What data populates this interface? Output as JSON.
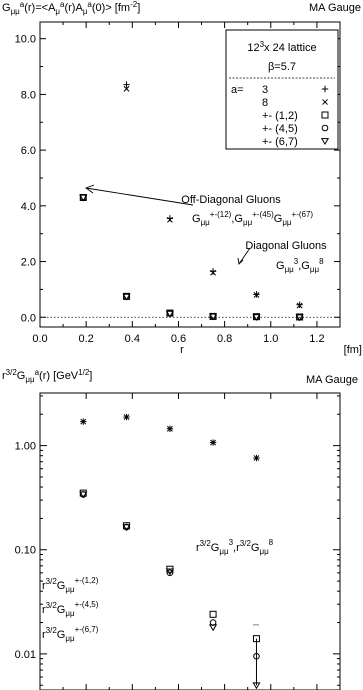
{
  "chart_data": [
    {
      "type": "scatter",
      "title_left": "G_{μμ}^{a}(r)=<A_{μ}^{a}(r)A_{μ}^{a}(0)> [fm^{-2}]",
      "title_right": "MA Gauge",
      "xlabel": "r",
      "xunit": "[fm]",
      "xlim": [
        0.0,
        1.3
      ],
      "ylim": [
        -0.35,
        10.6
      ],
      "xticks": [
        "0.0",
        "0.2",
        "0.4",
        "0.6",
        "0.8",
        "1.0",
        "1.2"
      ],
      "xtick_values": [
        0.0,
        0.2,
        0.4,
        0.6,
        0.8,
        1.0,
        1.2
      ],
      "yticks": [
        "0.0",
        "2.0",
        "4.0",
        "6.0",
        "8.0",
        "10.0"
      ],
      "ytick_values": [
        0.0,
        2.0,
        4.0,
        6.0,
        8.0,
        10.0
      ],
      "zero_line": true,
      "legend": {
        "placement": "top-right",
        "header": "12^3x 24 lattice",
        "beta": "β=5.7",
        "prefix": "a=",
        "entries": [
          {
            "label": "3",
            "marker": "plus"
          },
          {
            "label": "8",
            "marker": "cross"
          },
          {
            "label": "+- (1,2)",
            "marker": "square"
          },
          {
            "label": "+- (4,5)",
            "marker": "circle"
          },
          {
            "label": "+- (6,7)",
            "marker": "triangle"
          }
        ]
      },
      "annotations": [
        {
          "text": "Off-Diagonal Gluons",
          "sub": "G_{μμ}^{+-(12)},G_{μμ}^{+-(45)}G_{μμ}^{+-(67)}"
        },
        {
          "text": "Diagonal Gluons",
          "sub": "G_{μμ}^{3},G_{μμ}^{8}"
        }
      ],
      "series": [
        {
          "marker": "plus",
          "x": [
            0.375,
            0.563,
            0.75,
            0.938,
            1.125
          ],
          "y": [
            8.35,
            3.55,
            1.65,
            0.82,
            0.45
          ]
        },
        {
          "marker": "cross",
          "x": [
            0.375,
            0.563,
            0.75,
            0.938,
            1.125
          ],
          "y": [
            8.2,
            3.5,
            1.6,
            0.8,
            0.42
          ]
        },
        {
          "marker": "square",
          "x": [
            0.1875,
            0.375,
            0.563,
            0.75,
            0.938,
            1.125
          ],
          "y": [
            4.3,
            0.75,
            0.15,
            0.03,
            0.02,
            0.01
          ]
        },
        {
          "marker": "circle",
          "x": [
            0.1875,
            0.375,
            0.563,
            0.75,
            0.938,
            1.125
          ],
          "y": [
            4.3,
            0.75,
            0.14,
            0.03,
            0.015,
            0.005
          ]
        },
        {
          "marker": "triangle",
          "x": [
            0.1875,
            0.375,
            0.563,
            0.75,
            0.938,
            1.125
          ],
          "y": [
            4.3,
            0.74,
            0.13,
            0.025,
            0.01,
            0.0
          ]
        }
      ]
    },
    {
      "type": "scatter",
      "log_y": true,
      "title_left": "r^{3/2}G_{μμ}^{a}(r) [GeV^{1/2}]",
      "title_right": "MA Gauge",
      "xlim": [
        0.0,
        1.3
      ],
      "ylim": [
        0.0045,
        3.2
      ],
      "yticks": [
        "0.01",
        "0.10",
        "1.00"
      ],
      "ytick_values": [
        0.01,
        0.1,
        1.0
      ],
      "annotations": [
        {
          "text": "r^{3/2}G_{μμ}^{3},r^{3/2}G_{μμ}^{8}"
        },
        {
          "text": "r^{3/2}G_{μμ}^{+-(1,2)}"
        },
        {
          "text": "r^{3/2}G_{μμ}^{+-(4,5)}"
        },
        {
          "text": "r^{3/2}G_{μμ}^{+-(6,7)}"
        }
      ],
      "series": [
        {
          "marker": "plus",
          "x": [
            0.1875,
            0.375,
            0.563,
            0.75,
            0.938
          ],
          "y": [
            1.7,
            1.88,
            1.45,
            1.07,
            0.76
          ]
        },
        {
          "marker": "cross",
          "x": [
            0.1875,
            0.375,
            0.563,
            0.75,
            0.938
          ],
          "y": [
            1.7,
            1.88,
            1.45,
            1.07,
            0.76
          ]
        },
        {
          "marker": "square",
          "x": [
            0.1875,
            0.375,
            0.563,
            0.75,
            0.938
          ],
          "y": [
            0.35,
            0.17,
            0.065,
            0.024,
            0.014
          ]
        },
        {
          "marker": "circle",
          "x": [
            0.1875,
            0.375,
            0.563,
            0.75,
            0.938
          ],
          "y": [
            0.34,
            0.165,
            0.06,
            0.02,
            0.0095
          ]
        },
        {
          "marker": "triangle",
          "x": [
            0.1875,
            0.375,
            0.563,
            0.75,
            0.938
          ],
          "y": [
            0.34,
            0.165,
            0.062,
            0.018,
            0.005
          ]
        }
      ]
    }
  ]
}
